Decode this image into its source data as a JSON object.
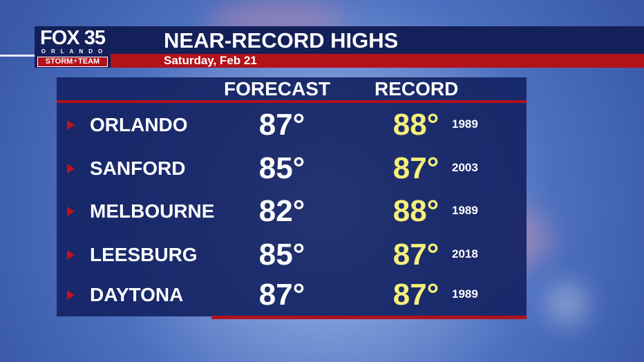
{
  "logo": {
    "brand": "FOX 35",
    "city": "ORLANDO",
    "team": "STORM⚡TEAM"
  },
  "header": {
    "title": "NEAR-RECORD HIGHS",
    "date": "Saturday, Feb 21"
  },
  "table": {
    "columns": [
      "FORECAST",
      "RECORD"
    ],
    "rows": [
      {
        "city": "ORLANDO",
        "forecast": "87°",
        "record": "88°",
        "year": "1989"
      },
      {
        "city": "SANFORD",
        "forecast": "85°",
        "record": "87°",
        "year": "2003"
      },
      {
        "city": "MELBOURNE",
        "forecast": "82°",
        "record": "88°",
        "year": "1989"
      },
      {
        "city": "LEESBURG",
        "forecast": "85°",
        "record": "87°",
        "year": "2018"
      },
      {
        "city": "DAYTONA",
        "forecast": "87°",
        "record": "87°",
        "year": "1989"
      }
    ]
  },
  "colors": {
    "navy": "#14205a",
    "red": "#b3121a",
    "record_yellow": "#f5f07a"
  }
}
